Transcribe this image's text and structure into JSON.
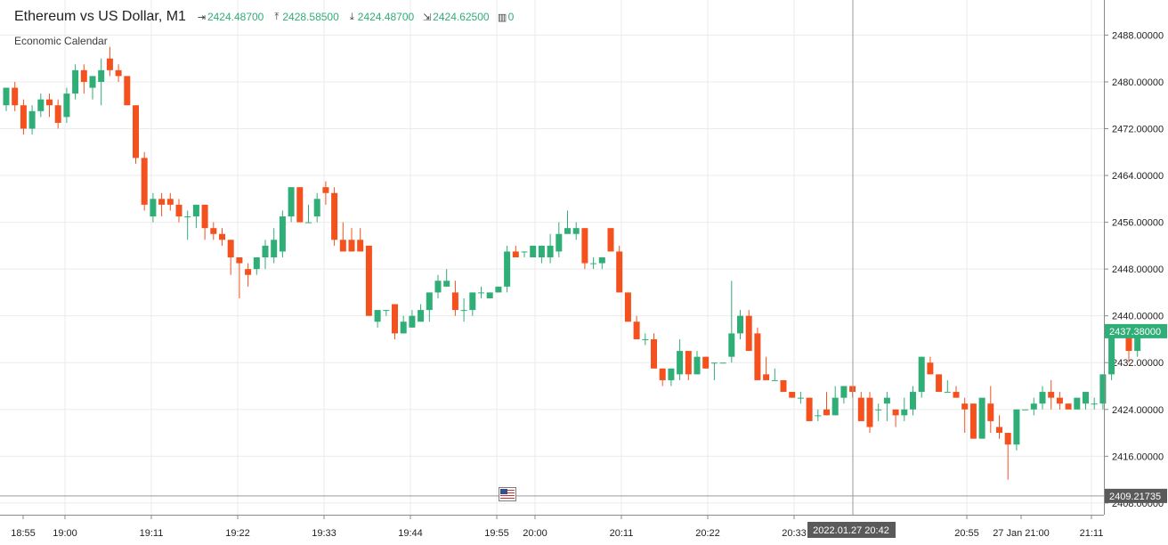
{
  "header": {
    "title": "Ethereum vs US Dollar, M1",
    "open": "2424.48700",
    "high": "2428.58500",
    "low": "2424.48700",
    "close": "2424.62500",
    "volume": "0",
    "economic_calendar": "Economic Calendar"
  },
  "icons": {
    "open": "open-arrow-icon",
    "high": "high-arrow-icon",
    "low": "low-arrow-icon",
    "close": "close-arrow-icon",
    "volume": "volume-bars-icon",
    "event": "us-flag-icon"
  },
  "colors": {
    "bull": "#2fae77",
    "bear": "#f4511e",
    "grid": "#ebebeb",
    "axis_text": "#222222",
    "price_tag": "#2fae77",
    "hover_tag": "#5a5a5a"
  },
  "chart_data": {
    "type": "candlestick",
    "timeframe": "M1",
    "ylim": [
      2406,
      2494
    ],
    "y_ticks": [
      "2488.00000",
      "2480.00000",
      "2472.00000",
      "2464.00000",
      "2456.00000",
      "2448.00000",
      "2440.00000",
      "2432.00000",
      "2424.00000",
      "2416.00000",
      "2408.00000"
    ],
    "x_ticks": [
      "18:55",
      "19:00",
      "19:11",
      "19:22",
      "19:33",
      "19:44",
      "19:55",
      "20:00",
      "20:11",
      "20:22",
      "20:33",
      "20:55",
      "27 Jan 21:00",
      "21:11"
    ],
    "current_price": "2437.38000",
    "crosshair_price": "2409.21735",
    "crosshair_time": "2022.01.27 20:42",
    "candles": [
      {
        "o": 2476,
        "h": 2479,
        "l": 2475,
        "c": 2479
      },
      {
        "o": 2479,
        "h": 2480,
        "l": 2475,
        "c": 2476
      },
      {
        "o": 2476,
        "h": 2477,
        "l": 2471,
        "c": 2472
      },
      {
        "o": 2472,
        "h": 2476,
        "l": 2471,
        "c": 2475
      },
      {
        "o": 2475,
        "h": 2478,
        "l": 2474,
        "c": 2477
      },
      {
        "o": 2477,
        "h": 2478,
        "l": 2474,
        "c": 2476
      },
      {
        "o": 2476,
        "h": 2477,
        "l": 2472,
        "c": 2473
      },
      {
        "o": 2474,
        "h": 2479,
        "l": 2473,
        "c": 2478
      },
      {
        "o": 2478,
        "h": 2483,
        "l": 2477,
        "c": 2482
      },
      {
        "o": 2482,
        "h": 2483,
        "l": 2478,
        "c": 2480
      },
      {
        "o": 2479,
        "h": 2481,
        "l": 2477,
        "c": 2481
      },
      {
        "o": 2480,
        "h": 2484,
        "l": 2476,
        "c": 2482
      },
      {
        "o": 2484,
        "h": 2486,
        "l": 2481,
        "c": 2482
      },
      {
        "o": 2482,
        "h": 2483,
        "l": 2480,
        "c": 2481
      },
      {
        "o": 2481,
        "h": 2481,
        "l": 2476,
        "c": 2476
      },
      {
        "o": 2476,
        "h": 2476,
        "l": 2466,
        "c": 2467
      },
      {
        "o": 2467,
        "h": 2468,
        "l": 2458,
        "c": 2459
      },
      {
        "o": 2457,
        "h": 2461,
        "l": 2456,
        "c": 2460
      },
      {
        "o": 2460,
        "h": 2461,
        "l": 2457,
        "c": 2459
      },
      {
        "o": 2460,
        "h": 2461,
        "l": 2458,
        "c": 2459
      },
      {
        "o": 2459,
        "h": 2460,
        "l": 2456,
        "c": 2457
      },
      {
        "o": 2457,
        "h": 2458,
        "l": 2453,
        "c": 2457
      },
      {
        "o": 2457,
        "h": 2459,
        "l": 2455,
        "c": 2459
      },
      {
        "o": 2459,
        "h": 2459,
        "l": 2453,
        "c": 2455
      },
      {
        "o": 2455,
        "h": 2456,
        "l": 2453,
        "c": 2454
      },
      {
        "o": 2454,
        "h": 2455,
        "l": 2452,
        "c": 2453
      },
      {
        "o": 2453,
        "h": 2453,
        "l": 2447,
        "c": 2450
      },
      {
        "o": 2450,
        "h": 2450,
        "l": 2443,
        "c": 2449
      },
      {
        "o": 2448,
        "h": 2449,
        "l": 2445,
        "c": 2447
      },
      {
        "o": 2448,
        "h": 2450,
        "l": 2447,
        "c": 2450
      },
      {
        "o": 2450,
        "h": 2453,
        "l": 2448,
        "c": 2452
      },
      {
        "o": 2450,
        "h": 2455,
        "l": 2449,
        "c": 2453
      },
      {
        "o": 2451,
        "h": 2458,
        "l": 2450,
        "c": 2457
      },
      {
        "o": 2457,
        "h": 2462,
        "l": 2456,
        "c": 2462
      },
      {
        "o": 2462,
        "h": 2462,
        "l": 2456,
        "c": 2456
      },
      {
        "o": 2456,
        "h": 2459,
        "l": 2456,
        "c": 2456
      },
      {
        "o": 2457,
        "h": 2461,
        "l": 2456,
        "c": 2460
      },
      {
        "o": 2462,
        "h": 2463,
        "l": 2459,
        "c": 2461
      },
      {
        "o": 2461,
        "h": 2462,
        "l": 2452,
        "c": 2453
      },
      {
        "o": 2453,
        "h": 2456,
        "l": 2451,
        "c": 2451
      },
      {
        "o": 2453,
        "h": 2455,
        "l": 2451,
        "c": 2451
      },
      {
        "o": 2453,
        "h": 2455,
        "l": 2451,
        "c": 2451
      },
      {
        "o": 2452,
        "h": 2452,
        "l": 2440,
        "c": 2440
      },
      {
        "o": 2439,
        "h": 2441,
        "l": 2438,
        "c": 2441
      },
      {
        "o": 2441,
        "h": 2441,
        "l": 2440,
        "c": 2441
      },
      {
        "o": 2442,
        "h": 2442,
        "l": 2436,
        "c": 2437
      },
      {
        "o": 2437,
        "h": 2440,
        "l": 2437,
        "c": 2439
      },
      {
        "o": 2438,
        "h": 2441,
        "l": 2438,
        "c": 2440
      },
      {
        "o": 2439,
        "h": 2442,
        "l": 2439,
        "c": 2441
      },
      {
        "o": 2441,
        "h": 2444,
        "l": 2439,
        "c": 2444
      },
      {
        "o": 2444,
        "h": 2447,
        "l": 2443,
        "c": 2446
      },
      {
        "o": 2445,
        "h": 2448,
        "l": 2445,
        "c": 2446
      },
      {
        "o": 2444,
        "h": 2446,
        "l": 2440,
        "c": 2441
      },
      {
        "o": 2441,
        "h": 2443,
        "l": 2439,
        "c": 2441
      },
      {
        "o": 2441,
        "h": 2444,
        "l": 2440,
        "c": 2444
      },
      {
        "o": 2444,
        "h": 2445,
        "l": 2443,
        "c": 2444
      },
      {
        "o": 2443,
        "h": 2444,
        "l": 2443,
        "c": 2444
      },
      {
        "o": 2444,
        "h": 2445,
        "l": 2444,
        "c": 2445
      },
      {
        "o": 2445,
        "h": 2452,
        "l": 2444,
        "c": 2451
      },
      {
        "o": 2451,
        "h": 2452,
        "l": 2450,
        "c": 2450
      },
      {
        "o": 2451,
        "h": 2451,
        "l": 2450,
        "c": 2451
      },
      {
        "o": 2450,
        "h": 2452,
        "l": 2450,
        "c": 2452
      },
      {
        "o": 2450,
        "h": 2452,
        "l": 2449,
        "c": 2452
      },
      {
        "o": 2450,
        "h": 2454,
        "l": 2449,
        "c": 2452
      },
      {
        "o": 2451,
        "h": 2456,
        "l": 2450,
        "c": 2454
      },
      {
        "o": 2454,
        "h": 2458,
        "l": 2454,
        "c": 2455
      },
      {
        "o": 2454,
        "h": 2456,
        "l": 2453,
        "c": 2455
      },
      {
        "o": 2455,
        "h": 2455,
        "l": 2448,
        "c": 2449
      },
      {
        "o": 2449,
        "h": 2450,
        "l": 2448,
        "c": 2449
      },
      {
        "o": 2449,
        "h": 2450,
        "l": 2448,
        "c": 2450
      },
      {
        "o": 2455,
        "h": 2455,
        "l": 2451,
        "c": 2451
      },
      {
        "o": 2451,
        "h": 2452,
        "l": 2444,
        "c": 2444
      },
      {
        "o": 2444,
        "h": 2444,
        "l": 2439,
        "c": 2439
      },
      {
        "o": 2439,
        "h": 2440,
        "l": 2436,
        "c": 2436
      },
      {
        "o": 2436,
        "h": 2437,
        "l": 2435,
        "c": 2436
      },
      {
        "o": 2436,
        "h": 2437,
        "l": 2431,
        "c": 2431
      },
      {
        "o": 2431,
        "h": 2431,
        "l": 2428,
        "c": 2429
      },
      {
        "o": 2429,
        "h": 2431,
        "l": 2428,
        "c": 2431
      },
      {
        "o": 2430,
        "h": 2436,
        "l": 2429,
        "c": 2434
      },
      {
        "o": 2434,
        "h": 2434,
        "l": 2429,
        "c": 2430
      },
      {
        "o": 2430,
        "h": 2434,
        "l": 2430,
        "c": 2433
      },
      {
        "o": 2433,
        "h": 2433,
        "l": 2431,
        "c": 2431
      },
      {
        "o": 2432,
        "h": 2432,
        "l": 2429,
        "c": 2432
      },
      {
        "o": 2432,
        "h": 2432,
        "l": 2432,
        "c": 2432
      },
      {
        "o": 2433,
        "h": 2446,
        "l": 2432,
        "c": 2437
      },
      {
        "o": 2437,
        "h": 2441,
        "l": 2436,
        "c": 2440
      },
      {
        "o": 2440,
        "h": 2441,
        "l": 2434,
        "c": 2434
      },
      {
        "o": 2437,
        "h": 2438,
        "l": 2429,
        "c": 2429
      },
      {
        "o": 2430,
        "h": 2433,
        "l": 2429,
        "c": 2429
      },
      {
        "o": 2429,
        "h": 2431,
        "l": 2429,
        "c": 2429
      },
      {
        "o": 2429,
        "h": 2429,
        "l": 2427,
        "c": 2427
      },
      {
        "o": 2427,
        "h": 2427,
        "l": 2426,
        "c": 2426
      },
      {
        "o": 2426,
        "h": 2427,
        "l": 2425,
        "c": 2426
      },
      {
        "o": 2426,
        "h": 2426,
        "l": 2422,
        "c": 2422
      },
      {
        "o": 2423,
        "h": 2424,
        "l": 2422,
        "c": 2423
      },
      {
        "o": 2424,
        "h": 2427,
        "l": 2423,
        "c": 2423
      },
      {
        "o": 2423,
        "h": 2428,
        "l": 2423,
        "c": 2426
      },
      {
        "o": 2426,
        "h": 2428,
        "l": 2425,
        "c": 2428
      },
      {
        "o": 2428,
        "h": 2428,
        "l": 2426,
        "c": 2427
      },
      {
        "o": 2426,
        "h": 2427,
        "l": 2422,
        "c": 2422
      },
      {
        "o": 2426,
        "h": 2427,
        "l": 2420,
        "c": 2421
      },
      {
        "o": 2424,
        "h": 2425,
        "l": 2422,
        "c": 2424
      },
      {
        "o": 2425,
        "h": 2427,
        "l": 2422,
        "c": 2426
      },
      {
        "o": 2424,
        "h": 2424,
        "l": 2421,
        "c": 2423
      },
      {
        "o": 2423,
        "h": 2426,
        "l": 2422,
        "c": 2424
      },
      {
        "o": 2424,
        "h": 2428,
        "l": 2423,
        "c": 2427
      },
      {
        "o": 2427,
        "h": 2433,
        "l": 2426,
        "c": 2433
      },
      {
        "o": 2432,
        "h": 2433,
        "l": 2430,
        "c": 2430
      },
      {
        "o": 2430,
        "h": 2430,
        "l": 2427,
        "c": 2427
      },
      {
        "o": 2427,
        "h": 2429,
        "l": 2427,
        "c": 2427
      },
      {
        "o": 2427,
        "h": 2428,
        "l": 2426,
        "c": 2426
      },
      {
        "o": 2425,
        "h": 2426,
        "l": 2420,
        "c": 2424
      },
      {
        "o": 2425,
        "h": 2425,
        "l": 2419,
        "c": 2419
      },
      {
        "o": 2419,
        "h": 2426,
        "l": 2419,
        "c": 2426
      },
      {
        "o": 2425,
        "h": 2428,
        "l": 2420,
        "c": 2422
      },
      {
        "o": 2421,
        "h": 2423,
        "l": 2419,
        "c": 2420
      },
      {
        "o": 2420,
        "h": 2420,
        "l": 2412,
        "c": 2418
      },
      {
        "o": 2418,
        "h": 2424,
        "l": 2417,
        "c": 2424
      },
      {
        "o": 2424,
        "h": 2424,
        "l": 2424,
        "c": 2424
      },
      {
        "o": 2424,
        "h": 2426,
        "l": 2423,
        "c": 2425
      },
      {
        "o": 2425,
        "h": 2428,
        "l": 2424,
        "c": 2427
      },
      {
        "o": 2427,
        "h": 2429,
        "l": 2424,
        "c": 2426
      },
      {
        "o": 2426,
        "h": 2427,
        "l": 2424,
        "c": 2425
      },
      {
        "o": 2425,
        "h": 2425,
        "l": 2424,
        "c": 2424
      },
      {
        "o": 2424,
        "h": 2426,
        "l": 2424,
        "c": 2426
      },
      {
        "o": 2425,
        "h": 2427,
        "l": 2424,
        "c": 2427
      },
      {
        "o": 2425,
        "h": 2426,
        "l": 2424,
        "c": 2425
      },
      {
        "o": 2425,
        "h": 2430,
        "l": 2424,
        "c": 2430
      },
      {
        "o": 2430,
        "h": 2438,
        "l": 2429,
        "c": 2437
      },
      {
        "o": 2437,
        "h": 2437,
        "l": 2437,
        "c": 2437
      },
      {
        "o": 2437,
        "h": 2438,
        "l": 2432,
        "c": 2434
      },
      {
        "o": 2434,
        "h": 2438,
        "l": 2433,
        "c": 2437
      }
    ]
  }
}
